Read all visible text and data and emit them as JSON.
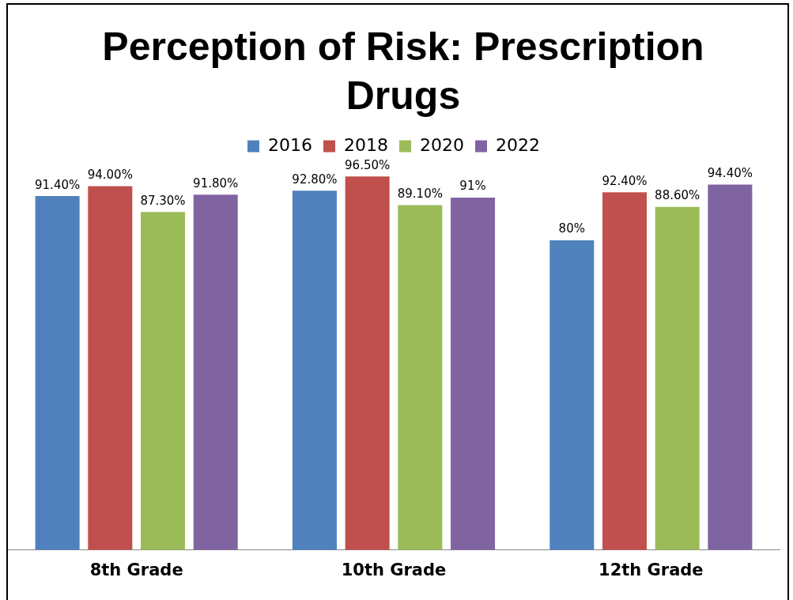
{
  "chart_data": {
    "type": "bar",
    "title": "Perception of Risk: Prescription Drugs",
    "categories": [
      "8th Grade",
      "10th Grade",
      "12th Grade"
    ],
    "series": [
      {
        "name": "2016",
        "color": "#4f81bd",
        "values": [
          91.4,
          92.8,
          80
        ],
        "value_labels": [
          "91.40%",
          "92.80%",
          "80%"
        ]
      },
      {
        "name": "2018",
        "color": "#c0504d",
        "values": [
          94.0,
          96.5,
          92.4
        ],
        "value_labels": [
          "94.00%",
          "96.50%",
          "92.40%"
        ]
      },
      {
        "name": "2020",
        "color": "#9bbb59",
        "values": [
          87.3,
          89.1,
          88.6
        ],
        "value_labels": [
          "87.30%",
          "89.10%",
          "88.60%"
        ]
      },
      {
        "name": "2022",
        "color": "#8064a2",
        "values": [
          91.8,
          91,
          94.4
        ],
        "value_labels": [
          "91.80%",
          "91%",
          "94.40%"
        ]
      }
    ],
    "grid": false,
    "legend": "top"
  }
}
